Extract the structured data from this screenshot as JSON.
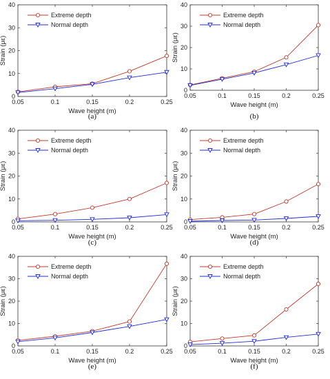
{
  "colors": {
    "extreme": "#c0392b",
    "normal": "#1f2bd6"
  },
  "chart_data": [
    {
      "panel_label": "(a)",
      "type": "line",
      "x": [
        0.05,
        0.1,
        0.15,
        0.2,
        0.25
      ],
      "xticks": [
        "0.05",
        "0.1",
        "0.15",
        "0.2",
        "0.25"
      ],
      "xlabel": "Wave height (m)",
      "ylabel": "Strain (με)",
      "ylim": [
        0,
        40
      ],
      "yticks": [
        "0",
        "10",
        "20",
        "30",
        "40"
      ],
      "legend": "top-left",
      "series": [
        {
          "name": "Extreme depth",
          "values": [
            2.0,
            4.2,
            5.6,
            11.0,
            17.7
          ]
        },
        {
          "name": "Normal depth",
          "values": [
            1.7,
            3.4,
            5.3,
            8.2,
            10.6
          ]
        }
      ]
    },
    {
      "panel_label": "(b)",
      "type": "line",
      "x": [
        0.05,
        0.1,
        0.15,
        0.2,
        0.25
      ],
      "xticks": [
        "0.05",
        "0.1",
        "0.15",
        "0.2",
        "0.25"
      ],
      "xlabel": "Wave height (m)",
      "ylabel": "Strain (με)",
      "ylim": [
        0,
        40
      ],
      "yticks": [
        "0",
        "10",
        "20",
        "30",
        "40"
      ],
      "legend": "top-left",
      "series": [
        {
          "name": "Extreme depth",
          "values": [
            2.5,
            5.6,
            8.7,
            15.4,
            30.5
          ]
        },
        {
          "name": "Normal depth",
          "values": [
            2.3,
            5.2,
            8.1,
            12.0,
            16.3
          ]
        }
      ]
    },
    {
      "panel_label": "(c)",
      "type": "line",
      "x": [
        0.05,
        0.1,
        0.15,
        0.2,
        0.25
      ],
      "xticks": [
        "0.05",
        "0.1",
        "0.15",
        "0.2",
        "0.25"
      ],
      "xlabel": "Wave height (m)",
      "ylabel": "Strain (με)",
      "ylim": [
        0,
        40
      ],
      "yticks": [
        "0",
        "10",
        "20",
        "30",
        "40"
      ],
      "legend": "top-left",
      "series": [
        {
          "name": "Extreme depth",
          "values": [
            1.3,
            3.4,
            6.2,
            10.0,
            17.0
          ]
        },
        {
          "name": "Normal depth",
          "values": [
            0.5,
            0.7,
            1.1,
            1.8,
            3.2
          ]
        }
      ]
    },
    {
      "panel_label": "(d)",
      "type": "line",
      "x": [
        0.05,
        0.1,
        0.15,
        0.2,
        0.25
      ],
      "xticks": [
        "0.05",
        "0.1",
        "0.15",
        "0.2",
        "0.25"
      ],
      "xlabel": "Wave height (m)",
      "ylabel": "Strain (με)",
      "ylim": [
        0,
        40
      ],
      "yticks": [
        "0",
        "10",
        "20",
        "30",
        "40"
      ],
      "legend": "top-left",
      "series": [
        {
          "name": "Extreme depth",
          "values": [
            1.0,
            2.0,
            3.4,
            8.9,
            16.5
          ]
        },
        {
          "name": "Normal depth",
          "values": [
            0.3,
            0.6,
            0.8,
            1.5,
            2.4
          ]
        }
      ]
    },
    {
      "panel_label": "(e)",
      "type": "line",
      "x": [
        0.05,
        0.1,
        0.15,
        0.2,
        0.25
      ],
      "xticks": [
        "0.05",
        "0.1",
        "0.15",
        "0.2",
        "0.25"
      ],
      "xlabel": "Wave height (m)",
      "ylabel": "Strain (με)",
      "ylim": [
        0,
        40
      ],
      "yticks": [
        "0",
        "10",
        "20",
        "30",
        "40"
      ],
      "legend": "top-left",
      "series": [
        {
          "name": "Extreme depth",
          "values": [
            2.5,
            4.3,
            6.6,
            10.9,
            36.7
          ]
        },
        {
          "name": "Normal depth",
          "values": [
            1.9,
            3.6,
            6.0,
            8.7,
            11.8
          ]
        }
      ]
    },
    {
      "panel_label": "(f)",
      "type": "line",
      "x": [
        0.05,
        0.1,
        0.15,
        0.2,
        0.25
      ],
      "xticks": [
        "0.05",
        "0.1",
        "0.15",
        "0.2",
        "0.25"
      ],
      "xlabel": "Wave height (m)",
      "ylabel": "Strain (με)",
      "ylim": [
        0,
        40
      ],
      "yticks": [
        "0",
        "10",
        "20",
        "30",
        "40"
      ],
      "legend": "top-left",
      "series": [
        {
          "name": "Extreme depth",
          "values": [
            1.8,
            3.3,
            4.7,
            16.3,
            27.7
          ]
        },
        {
          "name": "Normal depth",
          "values": [
            0.6,
            1.2,
            2.1,
            3.8,
            5.3
          ]
        }
      ]
    }
  ]
}
